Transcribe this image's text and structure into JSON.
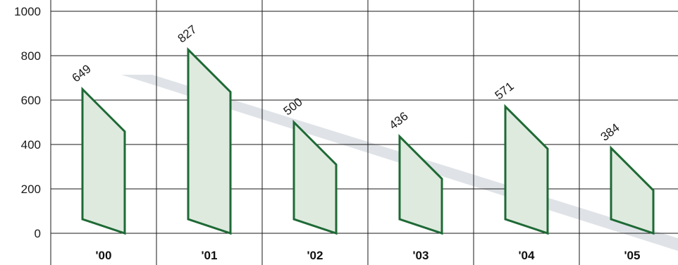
{
  "chart_data": {
    "type": "bar",
    "title": "",
    "xlabel": "",
    "ylabel": "",
    "categories": [
      "'00",
      "'01",
      "'02",
      "'03",
      "'04",
      "'05"
    ],
    "values": [
      649,
      827,
      500,
      436,
      571,
      384
    ],
    "data_labels": [
      "649",
      "827",
      "500",
      "436",
      "571",
      "384"
    ],
    "yticks": [
      0,
      200,
      400,
      600,
      800,
      1000
    ],
    "ylim": [
      0,
      1000
    ],
    "grid": true,
    "legend": "none",
    "colors": {
      "bar_fill": "#dfeadf",
      "bar_stroke": "#1e6a35",
      "grid": "#1a1a1a",
      "shadow": "#dfe3e7"
    }
  }
}
